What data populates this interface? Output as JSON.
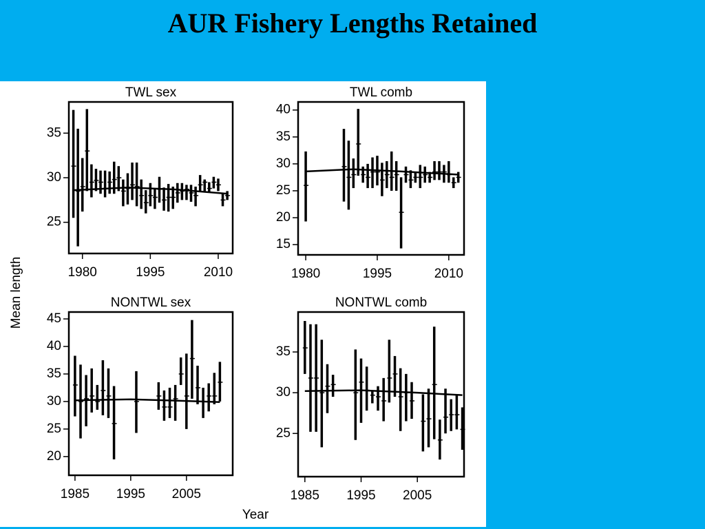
{
  "title": "AUR Fishery Lengths Retained",
  "ylabel": "Mean length",
  "xlabel": "Year",
  "chart_data": [
    {
      "type": "errorbar",
      "title": "TWL sex",
      "x": [
        1978,
        1979,
        1980,
        1981,
        1982,
        1983,
        1984,
        1985,
        1986,
        1987,
        1988,
        1989,
        1990,
        1991,
        1992,
        1993,
        1994,
        1995,
        1996,
        1997,
        1998,
        1999,
        2000,
        2001,
        2002,
        2003,
        2004,
        2005,
        2006,
        2007,
        2008,
        2009,
        2010,
        2011,
        2012
      ],
      "values": [
        31.3,
        28.5,
        29,
        33,
        29.5,
        29.7,
        29.5,
        28.8,
        29.5,
        29.8,
        30,
        28.5,
        28.8,
        29.2,
        29,
        28,
        27.2,
        28,
        27.8,
        28.7,
        27.5,
        27.8,
        27.8,
        28.3,
        28.5,
        28.7,
        28.3,
        28,
        29.2,
        29.5,
        28.8,
        29.5,
        29.2,
        27.5,
        28
      ],
      "low": [
        25.5,
        22.3,
        26.2,
        28.5,
        27.8,
        28.5,
        28.2,
        27.8,
        28.2,
        28.2,
        28.5,
        26.8,
        27,
        27.5,
        26.8,
        26.5,
        26,
        26.8,
        26.5,
        27.2,
        26.3,
        26.2,
        26.5,
        27.2,
        27.5,
        27.5,
        27.3,
        26.8,
        28.5,
        28.5,
        28.3,
        28.8,
        28.5,
        26.8,
        27.5
      ],
      "high": [
        37.6,
        35.5,
        32.2,
        37.7,
        31.5,
        31,
        30.8,
        30.8,
        30.7,
        31.8,
        31.3,
        29.8,
        30.5,
        31.7,
        31.7,
        29.8,
        28.6,
        29.4,
        28.8,
        30.1,
        28.9,
        29.3,
        29,
        29.4,
        29.4,
        29.2,
        29.2,
        29,
        30.3,
        29.8,
        29.5,
        30.1,
        29.9,
        28.2,
        28.5
      ],
      "fit": {
        "x": [
          1978,
          1990,
          2000,
          2012
        ],
        "values": [
          28.6,
          28.9,
          28.7,
          28.2
        ]
      },
      "xlim": [
        1977,
        2013.2
      ],
      "ylim": [
        21.5,
        38.5
      ],
      "xticks": [
        1980,
        1995,
        2010
      ],
      "yticks": [
        25,
        30,
        35
      ]
    },
    {
      "type": "errorbar",
      "title": "TWL comb",
      "x": [
        1980,
        1988,
        1989,
        1990,
        1991,
        1992,
        1993,
        1994,
        1995,
        1996,
        1997,
        1998,
        1999,
        2000,
        2001,
        2002,
        2003,
        2004,
        2005,
        2006,
        2007,
        2008,
        2009,
        2010,
        2011,
        2012
      ],
      "values": [
        26,
        29.5,
        27.5,
        28,
        33.7,
        28,
        27.5,
        28.5,
        28.5,
        27,
        28,
        27.5,
        28,
        21,
        28,
        27,
        27.5,
        27.5,
        28,
        27.5,
        28.5,
        28.5,
        28.5,
        28,
        26.5,
        27.5
      ],
      "low": [
        19.3,
        23,
        21.5,
        25.5,
        27.8,
        26.5,
        25.5,
        25.5,
        26,
        24,
        25.5,
        25,
        25,
        14.3,
        26.5,
        25.5,
        26.5,
        25.5,
        26.5,
        26.5,
        27,
        27,
        26.5,
        26.5,
        25.5,
        26.5
      ],
      "high": [
        32.3,
        36.5,
        34.3,
        31,
        40.2,
        29.5,
        30,
        31.2,
        31.5,
        30.2,
        30.5,
        32.3,
        30.5,
        27.5,
        29.5,
        28.8,
        28.5,
        29.8,
        29.5,
        28.5,
        30.5,
        30.5,
        29.8,
        30.5,
        27.5,
        28.5
      ],
      "fit": {
        "x": [
          1980,
          1990,
          2000,
          2012
        ],
        "values": [
          28.6,
          29,
          28.6,
          28
        ]
      },
      "xlim": [
        1978.4,
        2013.2
      ],
      "ylim": [
        13.1,
        41.5
      ],
      "xticks": [
        1980,
        1995,
        2010
      ],
      "yticks": [
        15,
        20,
        25,
        30,
        35,
        40
      ]
    },
    {
      "type": "errorbar",
      "title": "NONTWL sex",
      "x": [
        1985,
        1986,
        1987,
        1988,
        1989,
        1990,
        1991,
        1992,
        1996,
        2000,
        2001,
        2002,
        2003,
        2004,
        2005,
        2006,
        2007,
        2008,
        2009,
        2010,
        2011
      ],
      "values": [
        33,
        30,
        30.5,
        31,
        30,
        32,
        31,
        26,
        30,
        31,
        29,
        29,
        30.5,
        35,
        31,
        37.8,
        32.5,
        30,
        31,
        31,
        33.5
      ],
      "low": [
        27.3,
        23.3,
        25.5,
        28,
        28.5,
        27.5,
        27,
        19.5,
        24.3,
        28.5,
        26.5,
        27,
        26.5,
        33,
        25,
        30.5,
        29.5,
        27,
        28.2,
        29.5,
        30
      ],
      "high": [
        38.3,
        36.7,
        34.8,
        36,
        33,
        37.5,
        36,
        32.8,
        35.5,
        33.5,
        32,
        32.5,
        33,
        38,
        38.7,
        44.8,
        36.5,
        32.5,
        33.3,
        35.2,
        37.2
      ],
      "fit": {
        "x": [
          1985,
          1995,
          2005,
          2011
        ],
        "values": [
          30.2,
          30.4,
          30.1,
          29.9
        ]
      },
      "xlim": [
        1983.9,
        2013.3
      ],
      "ylim": [
        16.6,
        46.25
      ],
      "xticks": [
        1985,
        1995,
        2005
      ],
      "yticks": [
        20,
        25,
        30,
        35,
        40,
        45
      ]
    },
    {
      "type": "errorbar",
      "title": "NONTWL comb",
      "x": [
        1985,
        1986,
        1987,
        1988,
        1989,
        1990,
        1994,
        1995,
        1996,
        1997,
        1998,
        1999,
        2000,
        2001,
        2002,
        2003,
        2004,
        2006,
        2007,
        2008,
        2009,
        2010,
        2011,
        2012,
        2013
      ],
      "values": [
        35.5,
        31.8,
        31.8,
        30,
        30.8,
        31,
        30,
        31.3,
        30.3,
        29.7,
        29.5,
        29,
        31.8,
        32.3,
        29.5,
        30,
        29,
        26.5,
        26.8,
        31,
        24.2,
        27,
        27.3,
        27.3,
        25.5
      ],
      "low": [
        32.3,
        25.2,
        25.2,
        23.3,
        27.5,
        29.5,
        24.2,
        26.3,
        27.8,
        28.7,
        27.8,
        26.5,
        28.8,
        29.5,
        25.3,
        26.5,
        26.8,
        22.8,
        23.3,
        24.3,
        21.8,
        25,
        25.3,
        25.5,
        23
      ],
      "high": [
        38.8,
        38.4,
        38.4,
        36.5,
        33.5,
        32.2,
        35.3,
        34.2,
        33.2,
        30.3,
        30.8,
        31.8,
        36.5,
        34.5,
        33,
        32.3,
        31.3,
        29.8,
        30.5,
        38.1,
        26.7,
        30.5,
        29.2,
        29.7,
        28.2
      ],
      "fit": {
        "x": [
          1985,
          1995,
          2005,
          2013
        ],
        "values": [
          30.2,
          30.3,
          30,
          29.7
        ]
      },
      "xlim": [
        1983.8,
        2013.3
      ],
      "ylim": [
        19.7,
        39.9
      ],
      "xticks": [
        1985,
        1995,
        2005
      ],
      "yticks": [
        25,
        30,
        35
      ]
    }
  ]
}
